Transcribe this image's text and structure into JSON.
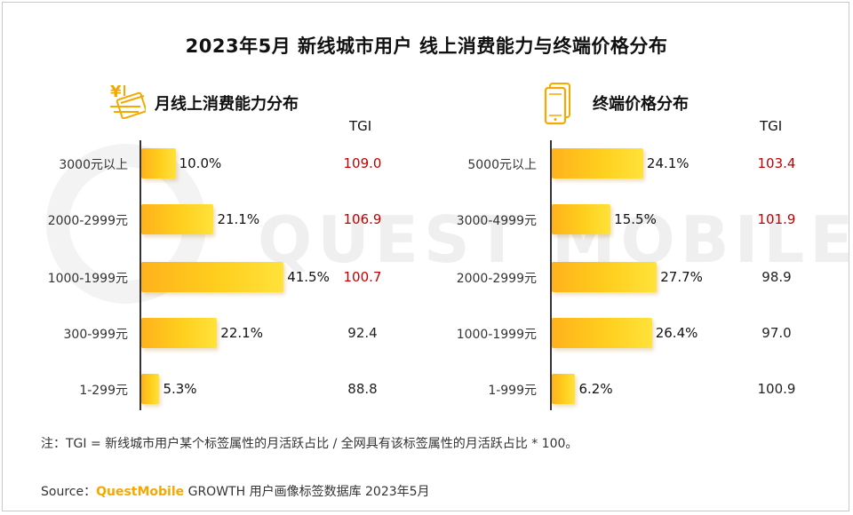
{
  "title": "2023年5月 新线城市用户 线上消费能力与终端价格分布",
  "watermark": "QUEST MOBILE",
  "colors": {
    "bar": "#ffc21a",
    "tgi_high": "#c00000",
    "tgi_normal": "#222222"
  },
  "chart_data": [
    {
      "type": "bar",
      "orientation": "horizontal",
      "title": "月线上消费能力分布",
      "icon": "yen-card-icon",
      "tgi_header": "TGI",
      "categories": [
        "3000元以上",
        "2000-2999元",
        "1000-1999元",
        "300-999元",
        "1-299元"
      ],
      "values": [
        10.0,
        21.1,
        41.5,
        22.1,
        5.3
      ],
      "value_labels": [
        "10.0%",
        "21.1%",
        "41.5%",
        "22.1%",
        "5.3%"
      ],
      "tgi": [
        "109.0",
        "106.9",
        "100.7",
        "92.4",
        "88.8"
      ],
      "tgi_highlight": [
        true,
        true,
        true,
        false,
        false
      ],
      "unit": "%"
    },
    {
      "type": "bar",
      "orientation": "horizontal",
      "title": "终端价格分布",
      "icon": "phone-icon",
      "tgi_header": "TGI",
      "categories": [
        "5000元以上",
        "3000-4999元",
        "2000-2999元",
        "1000-1999元",
        "1-999元"
      ],
      "values": [
        24.1,
        15.5,
        27.7,
        26.4,
        6.2
      ],
      "value_labels": [
        "24.1%",
        "15.5%",
        "27.7%",
        "26.4%",
        "6.2%"
      ],
      "tgi": [
        "103.4",
        "101.9",
        "98.9",
        "97.0",
        "100.9"
      ],
      "tgi_highlight": [
        true,
        true,
        false,
        false,
        false
      ],
      "unit": "%"
    }
  ],
  "footnote": "注：TGI = 新线城市用户某个标签属性的月活跃占比 / 全网具有该标签属性的月活跃占比 * 100。",
  "source": {
    "prefix": "Source：",
    "brand": "QuestMobile",
    "suffix": " GROWTH 用户画像标签数据库 2023年5月"
  }
}
